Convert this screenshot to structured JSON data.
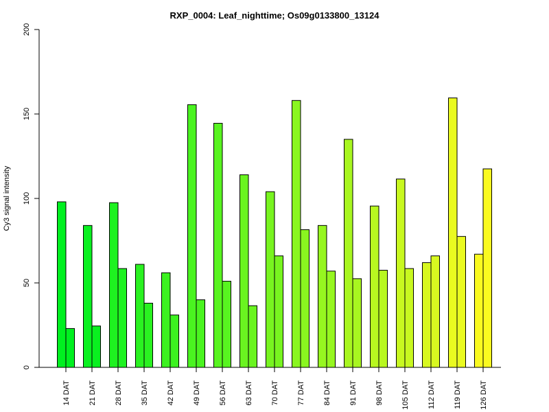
{
  "chart_data": {
    "type": "bar",
    "title": "RXP_0004: Leaf_nighttime; Os09g0133800_13124",
    "xlabel": "",
    "ylabel": "Cy3 signal intensity",
    "ylim": [
      0,
      200
    ],
    "yticks": [
      0,
      50,
      100,
      150,
      200
    ],
    "grid": false,
    "legend": "none",
    "categories": [
      "14 DAT",
      "21 DAT",
      "28 DAT",
      "35 DAT",
      "42 DAT",
      "49 DAT",
      "56 DAT",
      "63 DAT",
      "70 DAT",
      "77 DAT",
      "84 DAT",
      "91 DAT",
      "98 DAT",
      "105 DAT",
      "112 DAT",
      "119 DAT",
      "126 DAT"
    ],
    "series": [
      {
        "values": [
          98,
          84,
          97.5,
          61,
          56,
          155.5,
          144.5,
          114,
          104,
          158,
          84,
          135,
          95.5,
          111.5,
          62,
          159.5,
          67
        ]
      },
      {
        "values": [
          23,
          24.5,
          58.5,
          38,
          31,
          40,
          51,
          36.5,
          66,
          81.5,
          57,
          52.5,
          57.5,
          58.5,
          66,
          77.5,
          117.5
        ]
      }
    ],
    "bar_colors": [
      "#00f020",
      "#0af020",
      "#1ef220",
      "#2af221",
      "#3cf220",
      "#4af420",
      "#58f420",
      "#6af420",
      "#78f420",
      "#8af620",
      "#96f620",
      "#a8f620",
      "#b8f820",
      "#c8f820",
      "#d8f820",
      "#eafa20",
      "#fafa20"
    ]
  }
}
